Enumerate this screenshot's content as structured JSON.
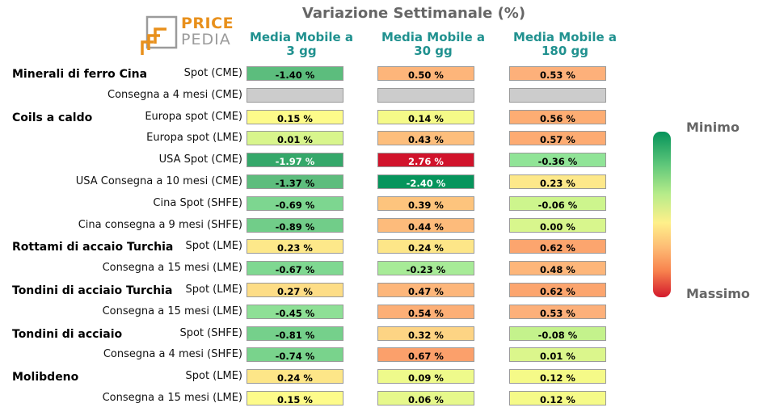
{
  "title": "Variazione Settimanale (%)",
  "logo": {
    "top": "PRICE",
    "bottom": "PEDIA"
  },
  "colorbar": {
    "min_label": "Minimo",
    "max_label": "Massimo"
  },
  "chart_data": {
    "type": "heatmap",
    "title": "Variazione Settimanale (%)",
    "columns": [
      "Media Mobile a\n3 gg",
      "Media Mobile a\n30 gg",
      "Media Mobile a\n180 gg"
    ],
    "rows": [
      {
        "group": "Minerali di ferro Cina",
        "label": "Spot (CME)",
        "values": [
          "-1.40 %",
          "0.50 %",
          "0.53 %"
        ],
        "colors": [
          "#5cbd7d",
          "#fdb57a",
          "#fdb07a"
        ]
      },
      {
        "group": "",
        "label": "Consegna a 4 mesi (CME)",
        "values": [
          "",
          "",
          ""
        ],
        "colors": [
          "#cccccc",
          "#cccccc",
          "#cccccc"
        ]
      },
      {
        "group": "Coils a caldo",
        "label": "Europa spot (CME)",
        "values": [
          "0.15 %",
          "0.14 %",
          "0.56 %"
        ],
        "colors": [
          "#fdfb8a",
          "#f5fa88",
          "#fdad73"
        ]
      },
      {
        "group": "",
        "label": "Europa spot (LME)",
        "values": [
          "0.01 %",
          "0.43 %",
          "0.57 %"
        ],
        "colors": [
          "#d8f58c",
          "#fdbe7c",
          "#fdab72"
        ]
      },
      {
        "group": "",
        "label": "USA Spot (CME)",
        "values": [
          "-1.97 %",
          "2.76 %",
          "-0.36 %"
        ],
        "colors": [
          "#35a86a",
          "#d1132b",
          "#90e497"
        ]
      },
      {
        "group": "",
        "label": "USA Consegna a 10 mesi (CME)",
        "values": [
          "-1.37 %",
          "-2.40 %",
          "0.23 %"
        ],
        "colors": [
          "#5dbd7d",
          "#06955c",
          "#fde88a"
        ]
      },
      {
        "group": "",
        "label": "Cina Spot (SHFE)",
        "values": [
          "-0.69 %",
          "0.39 %",
          "-0.06 %"
        ],
        "colors": [
          "#7dd690",
          "#fdc47d",
          "#cdf58d"
        ]
      },
      {
        "group": "",
        "label": "Cina consegna a 9 mesi (SHFE)",
        "values": [
          "-0.89 %",
          "0.44 %",
          "0.00 %"
        ],
        "colors": [
          "#71cd89",
          "#fdbb7b",
          "#d8f68d"
        ]
      },
      {
        "group": "Rottami di accaio Turchia",
        "label": "Spot (LME)",
        "values": [
          "0.23 %",
          "0.24 %",
          "0.62 %"
        ],
        "colors": [
          "#fde88a",
          "#fde688",
          "#fca56e"
        ]
      },
      {
        "group": "",
        "label": "Consegna a 15 mesi (LME)",
        "values": [
          "-0.67 %",
          "-0.23 %",
          "0.48 %"
        ],
        "colors": [
          "#7fd891",
          "#a7eb97",
          "#fdb67a"
        ]
      },
      {
        "group": "Tondini di acciaio Turchia",
        "label": "Spot (LME)",
        "values": [
          "0.27 %",
          "0.47 %",
          "0.62 %"
        ],
        "colors": [
          "#fddd86",
          "#fdb67a",
          "#fca56e"
        ]
      },
      {
        "group": "",
        "label": "Consegna a 15 mesi (LME)",
        "values": [
          "-0.45 %",
          "0.54 %",
          "0.53 %"
        ],
        "colors": [
          "#8ee096",
          "#fdaf76",
          "#fdb07a"
        ]
      },
      {
        "group": "Tondini di acciaio",
        "label": "Spot (SHFE)",
        "values": [
          "-0.81 %",
          "0.32 %",
          "-0.08 %"
        ],
        "colors": [
          "#75d08b",
          "#fdd484",
          "#c4f28c"
        ]
      },
      {
        "group": "",
        "label": "Consegna a 4 mesi (SHFE)",
        "values": [
          "-0.74 %",
          "0.67 %",
          "0.01 %"
        ],
        "colors": [
          "#79d38c",
          "#fba06b",
          "#dbf68c"
        ]
      },
      {
        "group": "Molibdeno",
        "label": "Spot (LME)",
        "values": [
          "0.24 %",
          "0.09 %",
          "0.12 %"
        ],
        "colors": [
          "#fde688",
          "#eefa8b",
          "#f5fa88"
        ]
      },
      {
        "group": "",
        "label": "Consegna a 15 mesi (LME)",
        "values": [
          "0.15 %",
          "0.06 %",
          "0.12 %"
        ],
        "colors": [
          "#fdfb8a",
          "#e6f88b",
          "#f5fa88"
        ]
      }
    ]
  }
}
